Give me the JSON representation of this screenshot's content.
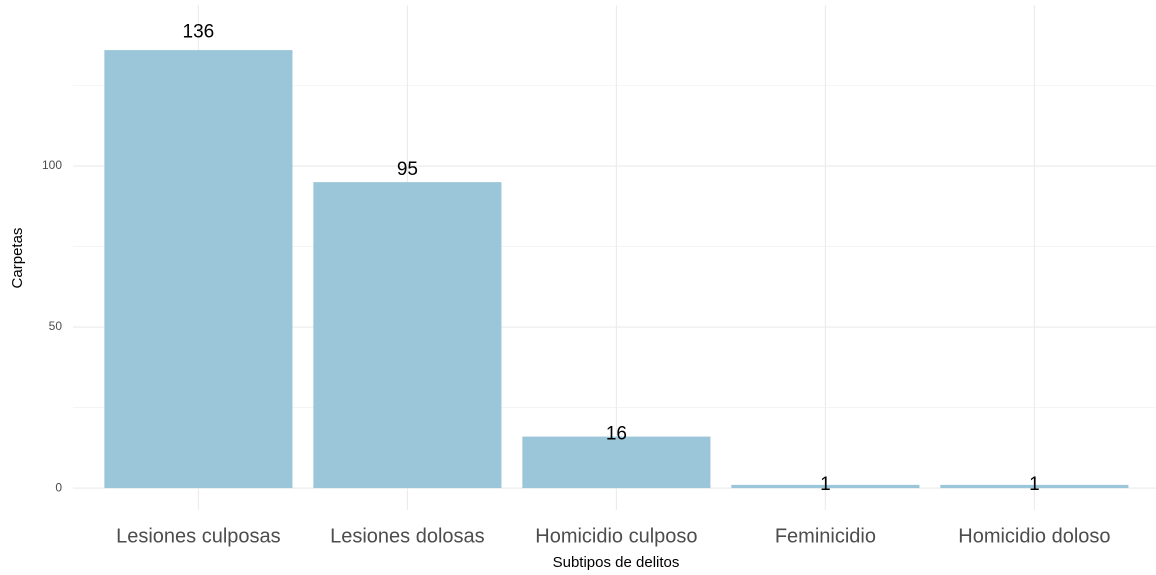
{
  "chart_data": {
    "type": "bar",
    "categories": [
      "Lesiones culposas",
      "Lesiones dolosas",
      "Homicidio culposo",
      "Feminicidio",
      "Homicidio doloso"
    ],
    "values": [
      136,
      95,
      16,
      1,
      1
    ],
    "color": "#9bc6d9",
    "x_label": "Subtipos de delitos",
    "y_label": "Carpetas",
    "ylim": [
      -6.8,
      150
    ],
    "yticks": [
      0,
      50,
      100
    ],
    "yticks_minor": [
      25,
      75,
      125
    ],
    "grid": true
  }
}
